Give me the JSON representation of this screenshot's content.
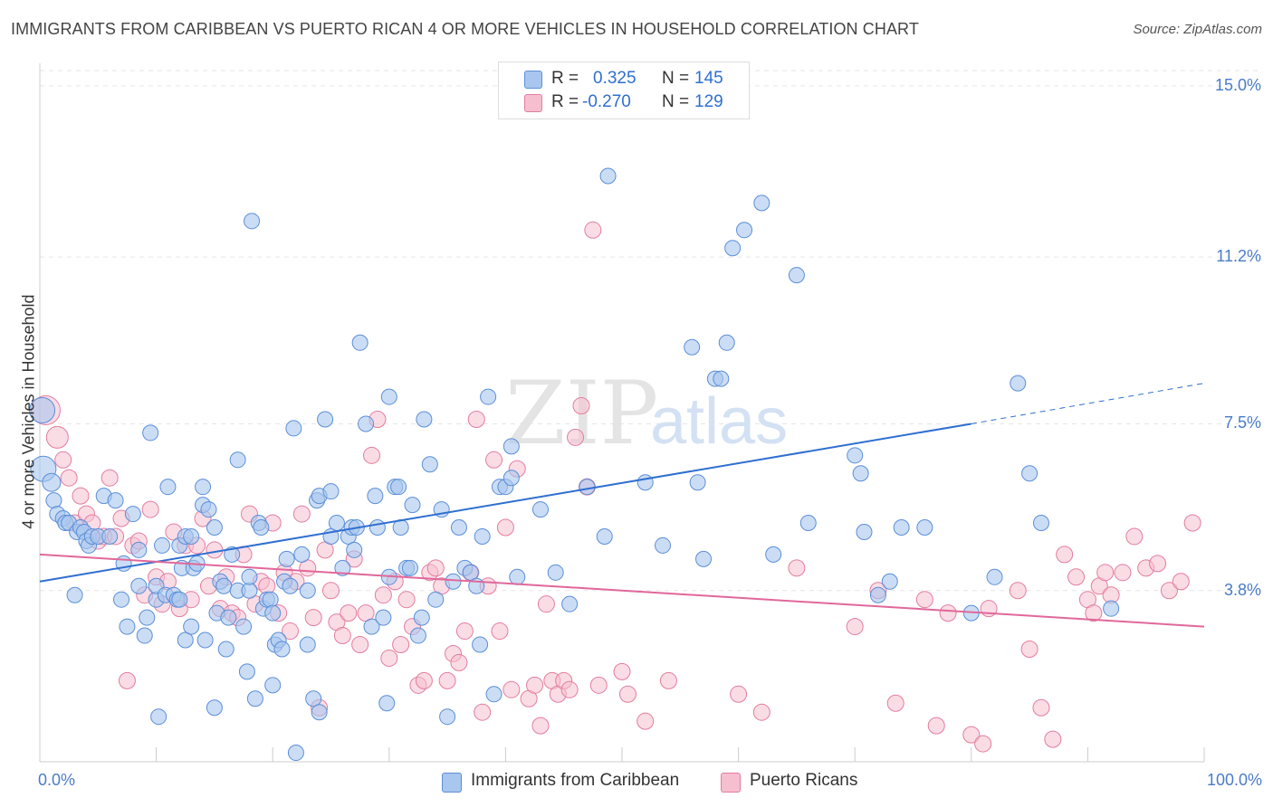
{
  "title": "IMMIGRANTS FROM CARIBBEAN VS PUERTO RICAN 4 OR MORE VEHICLES IN HOUSEHOLD CORRELATION CHART",
  "source": "Source: ZipAtlas.com",
  "watermark": {
    "zip": "ZIP",
    "atlas": "atlas"
  },
  "colors": {
    "blue_fill": "#a9c6ee",
    "blue_stroke": "#5b8fd8",
    "blue_line": "#2f6fd0",
    "pink_fill": "#f6bfd0",
    "pink_stroke": "#e37da0",
    "pink_line": "#e0689a",
    "tick_text": "#4a7cc8",
    "grid": "#e6e6e6"
  },
  "legend": {
    "rows": [
      {
        "r_label": "R =",
        "r_value": "0.325",
        "n_label": "N =",
        "n_value": "145"
      },
      {
        "r_label": "R =",
        "r_value": "-0.270",
        "n_label": "N =",
        "n_value": "129"
      }
    ]
  },
  "chart_data": {
    "type": "scatter",
    "ylabel": "4 or more Vehicles in Household",
    "xlim": [
      0,
      100
    ],
    "ylim": [
      0,
      15.5
    ],
    "y_ticks": [
      {
        "value": 3.8,
        "label": "3.8%"
      },
      {
        "value": 7.5,
        "label": "7.5%"
      },
      {
        "value": 11.2,
        "label": "11.2%"
      },
      {
        "value": 15.0,
        "label": "15.0%"
      }
    ],
    "x_tick_labels": [
      {
        "value": 0,
        "label": "0.0%"
      },
      {
        "value": 100,
        "label": "100.0%"
      }
    ],
    "grid": "horizontal dashed",
    "series": [
      {
        "name": "Immigrants from Caribbean",
        "color": "#5b8fd8",
        "trend": {
          "x": [
            0,
            80
          ],
          "y": [
            4.0,
            7.5
          ],
          "dashed_to": [
            100,
            8.4
          ]
        },
        "points": [
          [
            0.2,
            7.8
          ],
          [
            0.3,
            6.5
          ],
          [
            1,
            6.2
          ],
          [
            1.2,
            5.8
          ],
          [
            1.5,
            5.5
          ],
          [
            2,
            5.4
          ],
          [
            2.2,
            5.3
          ],
          [
            2.5,
            5.3
          ],
          [
            3,
            3.7
          ],
          [
            3.2,
            5.1
          ],
          [
            3.5,
            5.2
          ],
          [
            3.8,
            5.1
          ],
          [
            4,
            4.9
          ],
          [
            4.2,
            4.8
          ],
          [
            4.5,
            5.0
          ],
          [
            5,
            5.0
          ],
          [
            5.5,
            5.9
          ],
          [
            6,
            5.0
          ],
          [
            6.5,
            5.8
          ],
          [
            7,
            3.6
          ],
          [
            7.2,
            4.4
          ],
          [
            7.5,
            3.0
          ],
          [
            8,
            5.5
          ],
          [
            8.5,
            3.9
          ],
          [
            8.5,
            4.7
          ],
          [
            9,
            2.8
          ],
          [
            9.2,
            3.2
          ],
          [
            9.5,
            7.3
          ],
          [
            10,
            3.6
          ],
          [
            10,
            3.9
          ],
          [
            10.2,
            1.0
          ],
          [
            10.5,
            4.8
          ],
          [
            10.8,
            3.7
          ],
          [
            11,
            6.1
          ],
          [
            11.5,
            3.7
          ],
          [
            11.8,
            3.6
          ],
          [
            12,
            3.6
          ],
          [
            12,
            4.8
          ],
          [
            12.2,
            4.3
          ],
          [
            12.5,
            5.0
          ],
          [
            12.5,
            2.7
          ],
          [
            13,
            3.0
          ],
          [
            13,
            5.0
          ],
          [
            13.2,
            4.3
          ],
          [
            13.5,
            4.4
          ],
          [
            14,
            5.7
          ],
          [
            14,
            6.1
          ],
          [
            14.2,
            2.7
          ],
          [
            14.5,
            5.6
          ],
          [
            15,
            5.2
          ],
          [
            15,
            1.2
          ],
          [
            15.2,
            3.3
          ],
          [
            15.5,
            4.0
          ],
          [
            15.8,
            3.9
          ],
          [
            16,
            2.5
          ],
          [
            16.2,
            3.2
          ],
          [
            16.5,
            4.6
          ],
          [
            17,
            6.7
          ],
          [
            17,
            3.8
          ],
          [
            17.5,
            3.0
          ],
          [
            17.8,
            2.0
          ],
          [
            18,
            3.8
          ],
          [
            18,
            4.1
          ],
          [
            18.2,
            12.0
          ],
          [
            18.5,
            1.4
          ],
          [
            18.8,
            5.3
          ],
          [
            19,
            5.2
          ],
          [
            19.2,
            3.4
          ],
          [
            19.5,
            3.6
          ],
          [
            19.8,
            3.6
          ],
          [
            20,
            1.7
          ],
          [
            20,
            3.3
          ],
          [
            20.2,
            2.6
          ],
          [
            20.5,
            2.7
          ],
          [
            20.8,
            2.5
          ],
          [
            21,
            4.0
          ],
          [
            21.2,
            4.5
          ],
          [
            21.5,
            3.9
          ],
          [
            21.8,
            7.4
          ],
          [
            22,
            0.2
          ],
          [
            22.5,
            4.6
          ],
          [
            23,
            3.8
          ],
          [
            23,
            2.6
          ],
          [
            23.5,
            1.4
          ],
          [
            23.8,
            5.8
          ],
          [
            24,
            5.9
          ],
          [
            24,
            1.1
          ],
          [
            24.5,
            7.6
          ],
          [
            25,
            5.0
          ],
          [
            25,
            6.0
          ],
          [
            25.5,
            5.3
          ],
          [
            26,
            4.3
          ],
          [
            26.5,
            5.0
          ],
          [
            26.8,
            5.2
          ],
          [
            27,
            4.7
          ],
          [
            27.2,
            5.2
          ],
          [
            27.5,
            9.3
          ],
          [
            28,
            7.5
          ],
          [
            28.5,
            3.0
          ],
          [
            28.8,
            5.9
          ],
          [
            29,
            5.2
          ],
          [
            29.5,
            3.2
          ],
          [
            29.8,
            1.3
          ],
          [
            30,
            8.1
          ],
          [
            30,
            4.1
          ],
          [
            30.5,
            6.1
          ],
          [
            30.8,
            6.1
          ],
          [
            31,
            5.2
          ],
          [
            31.5,
            4.3
          ],
          [
            31.8,
            4.3
          ],
          [
            32,
            5.7
          ],
          [
            32.5,
            2.8
          ],
          [
            32.8,
            3.2
          ],
          [
            33,
            7.6
          ],
          [
            33.5,
            6.6
          ],
          [
            34,
            3.6
          ],
          [
            34.5,
            5.6
          ],
          [
            35,
            1.0
          ],
          [
            35.5,
            4.0
          ],
          [
            36,
            5.2
          ],
          [
            36.5,
            4.3
          ],
          [
            37,
            4.2
          ],
          [
            37.5,
            3.9
          ],
          [
            37.8,
            2.6
          ],
          [
            38,
            5.0
          ],
          [
            38.5,
            8.1
          ],
          [
            39,
            1.5
          ],
          [
            39.5,
            6.1
          ],
          [
            40,
            6.1
          ],
          [
            40.5,
            7.0
          ],
          [
            40.5,
            6.3
          ],
          [
            41,
            4.1
          ],
          [
            43,
            5.6
          ],
          [
            44.3,
            4.2
          ],
          [
            45.5,
            3.5
          ],
          [
            47,
            6.1
          ],
          [
            48.5,
            5.0
          ],
          [
            48.8,
            13.0
          ],
          [
            52,
            6.2
          ],
          [
            53.5,
            4.8
          ],
          [
            56,
            9.2
          ],
          [
            56.5,
            6.2
          ],
          [
            57,
            4.5
          ],
          [
            58,
            8.5
          ],
          [
            58.5,
            8.5
          ],
          [
            59,
            9.3
          ],
          [
            59.5,
            11.4
          ],
          [
            60.5,
            11.8
          ],
          [
            62,
            12.4
          ],
          [
            63,
            4.6
          ],
          [
            65,
            10.8
          ],
          [
            66,
            5.3
          ],
          [
            70,
            6.8
          ],
          [
            70.5,
            6.4
          ],
          [
            70.8,
            5.1
          ],
          [
            72,
            3.7
          ],
          [
            73,
            4.0
          ],
          [
            74,
            5.2
          ],
          [
            76,
            5.2
          ],
          [
            80,
            3.3
          ],
          [
            82,
            4.1
          ],
          [
            84,
            8.4
          ],
          [
            85,
            6.4
          ],
          [
            86,
            5.3
          ],
          [
            92,
            3.4
          ]
        ]
      },
      {
        "name": "Puerto Ricans",
        "color": "#e37da0",
        "trend": {
          "x": [
            0,
            100
          ],
          "y": [
            4.6,
            3.0
          ]
        },
        "points": [
          [
            0.5,
            7.8
          ],
          [
            1.5,
            7.2
          ],
          [
            2,
            6.7
          ],
          [
            2.5,
            6.3
          ],
          [
            3,
            5.3
          ],
          [
            3.5,
            5.9
          ],
          [
            4,
            5.5
          ],
          [
            4.5,
            5.3
          ],
          [
            5,
            4.9
          ],
          [
            5.5,
            5.0
          ],
          [
            6,
            6.3
          ],
          [
            6.5,
            5.0
          ],
          [
            7,
            5.4
          ],
          [
            7.5,
            1.8
          ],
          [
            8,
            4.8
          ],
          [
            8.5,
            4.9
          ],
          [
            9,
            3.7
          ],
          [
            9.5,
            5.6
          ],
          [
            10,
            4.1
          ],
          [
            10.5,
            3.5
          ],
          [
            11,
            4.0
          ],
          [
            11.5,
            5.1
          ],
          [
            12,
            3.4
          ],
          [
            12.5,
            4.8
          ],
          [
            13,
            3.6
          ],
          [
            13.5,
            4.8
          ],
          [
            14,
            5.4
          ],
          [
            14.5,
            3.9
          ],
          [
            15,
            4.7
          ],
          [
            15.5,
            3.4
          ],
          [
            16,
            4.1
          ],
          [
            16.5,
            3.3
          ],
          [
            17,
            3.2
          ],
          [
            17.5,
            4.6
          ],
          [
            18,
            5.5
          ],
          [
            18.5,
            3.5
          ],
          [
            19,
            4.0
          ],
          [
            19.5,
            3.9
          ],
          [
            20,
            5.3
          ],
          [
            20.5,
            3.3
          ],
          [
            21,
            4.2
          ],
          [
            21.5,
            2.9
          ],
          [
            22,
            4.0
          ],
          [
            22.5,
            5.5
          ],
          [
            23,
            4.3
          ],
          [
            23.5,
            3.2
          ],
          [
            24,
            1.2
          ],
          [
            24.5,
            4.7
          ],
          [
            25,
            3.8
          ],
          [
            25.5,
            3.1
          ],
          [
            26,
            2.8
          ],
          [
            26.5,
            3.3
          ],
          [
            27,
            4.5
          ],
          [
            27.5,
            2.6
          ],
          [
            28,
            3.3
          ],
          [
            28.5,
            6.8
          ],
          [
            29,
            7.6
          ],
          [
            29.5,
            3.7
          ],
          [
            30,
            2.3
          ],
          [
            30.5,
            4.0
          ],
          [
            31,
            2.6
          ],
          [
            31.5,
            3.6
          ],
          [
            32,
            3.0
          ],
          [
            32.5,
            1.7
          ],
          [
            33,
            1.8
          ],
          [
            33.5,
            4.2
          ],
          [
            34,
            4.3
          ],
          [
            34.5,
            3.9
          ],
          [
            35,
            1.8
          ],
          [
            35.5,
            2.4
          ],
          [
            36,
            2.2
          ],
          [
            36.5,
            2.9
          ],
          [
            37,
            4.2
          ],
          [
            37.5,
            7.6
          ],
          [
            38,
            1.1
          ],
          [
            38.5,
            3.9
          ],
          [
            39,
            6.7
          ],
          [
            39.5,
            2.9
          ],
          [
            40,
            5.2
          ],
          [
            40.5,
            1.6
          ],
          [
            41,
            6.5
          ],
          [
            42,
            1.4
          ],
          [
            42.5,
            1.7
          ],
          [
            43,
            0.8
          ],
          [
            43.5,
            3.5
          ],
          [
            44,
            1.8
          ],
          [
            44.5,
            1.5
          ],
          [
            45,
            1.8
          ],
          [
            45.5,
            1.6
          ],
          [
            46,
            7.2
          ],
          [
            46.5,
            7.9
          ],
          [
            47,
            6.1
          ],
          [
            47.5,
            11.8
          ],
          [
            48,
            1.7
          ],
          [
            50,
            2.0
          ],
          [
            50.5,
            1.5
          ],
          [
            52,
            0.9
          ],
          [
            54,
            1.8
          ],
          [
            60,
            1.5
          ],
          [
            62,
            1.1
          ],
          [
            65,
            4.3
          ],
          [
            70,
            3.0
          ],
          [
            72,
            3.8
          ],
          [
            73.5,
            1.3
          ],
          [
            76,
            3.6
          ],
          [
            77,
            0.8
          ],
          [
            78,
            3.3
          ],
          [
            80,
            0.6
          ],
          [
            81,
            0.4
          ],
          [
            81.5,
            3.4
          ],
          [
            84,
            3.8
          ],
          [
            85,
            2.5
          ],
          [
            86,
            1.2
          ],
          [
            87,
            0.5
          ],
          [
            88,
            4.6
          ],
          [
            89,
            4.1
          ],
          [
            90,
            3.6
          ],
          [
            90.5,
            3.3
          ],
          [
            91,
            3.9
          ],
          [
            91.5,
            4.2
          ],
          [
            92,
            3.7
          ],
          [
            93,
            4.2
          ],
          [
            94,
            5.0
          ],
          [
            95,
            4.3
          ],
          [
            96,
            4.4
          ],
          [
            97,
            3.8
          ],
          [
            98,
            4.0
          ],
          [
            99,
            5.3
          ]
        ]
      }
    ]
  },
  "bottom_legend": [
    {
      "label": "Immigrants from Caribbean"
    },
    {
      "label": "Puerto Ricans"
    }
  ]
}
